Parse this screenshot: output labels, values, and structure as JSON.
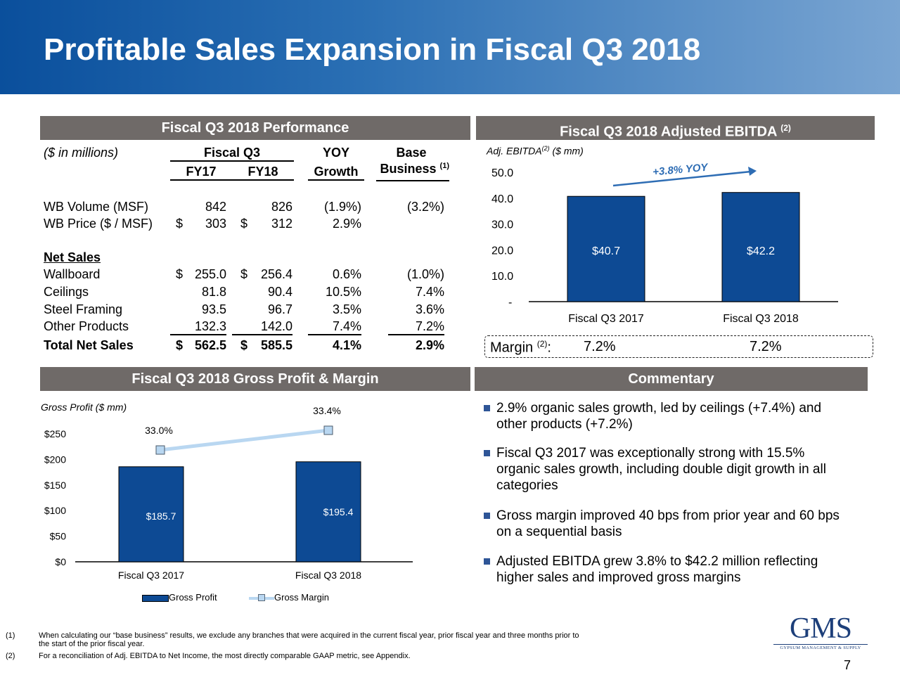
{
  "slide": {
    "title": "Profitable Sales Expansion in Fiscal Q3 2018",
    "page_number": "7"
  },
  "performance": {
    "header": "Fiscal Q3 2018 Performance",
    "units": "($ in millions)",
    "col_fiscal_q3": "Fiscal Q3",
    "col_yoy": "YOY",
    "col_base": "Base",
    "col_fy17": "FY17",
    "col_fy18": "FY18",
    "col_growth": "Growth",
    "col_business": "Business",
    "col_business_sup": "(1)",
    "net_sales_label": "Net Sales",
    "rows_volume": [
      {
        "label": "WB Volume (MSF)",
        "fy17_cur": "",
        "fy17": "842",
        "fy18_cur": "",
        "fy18": "826",
        "growth": "(1.9%)",
        "base": "(3.2%)"
      },
      {
        "label": "WB Price ($ / MSF)",
        "fy17_cur": "$",
        "fy17": "303",
        "fy18_cur": "$",
        "fy18": "312",
        "growth": "2.9%",
        "base": ""
      }
    ],
    "rows_sales": [
      {
        "label": "Wallboard",
        "fy17_cur": "$",
        "fy17": "255.0",
        "fy18_cur": "$",
        "fy18": "256.4",
        "growth": "0.6%",
        "base": "(1.0%)"
      },
      {
        "label": "Ceilings",
        "fy17_cur": "",
        "fy17": "81.8",
        "fy18_cur": "",
        "fy18": "90.4",
        "growth": "10.5%",
        "base": "7.4%"
      },
      {
        "label": "Steel Framing",
        "fy17_cur": "",
        "fy17": "93.5",
        "fy18_cur": "",
        "fy18": "96.7",
        "growth": "3.5%",
        "base": "3.6%"
      },
      {
        "label": "Other Products",
        "fy17_cur": "",
        "fy17": "132.3",
        "fy18_cur": "",
        "fy18": "142.0",
        "growth": "7.4%",
        "base": "7.2%"
      }
    ],
    "total": {
      "label": "Total Net Sales",
      "fy17_cur": "$",
      "fy17": "562.5",
      "fy18_cur": "$",
      "fy18": "585.5",
      "growth": "4.1%",
      "base": "2.9%"
    }
  },
  "ebitda": {
    "header": "Fiscal Q3 2018 Adjusted EBITDA",
    "header_sup": "(2)",
    "units_pre": "Adj. EBITDA",
    "units_sup": "(2)",
    "units_post": " ($ mm)",
    "yoy_label": "+3.8% YOY",
    "margin_label": "Margin",
    "margin_sup": "(2)",
    "margin_colon": ":",
    "margins": [
      "7.2%",
      "7.2%"
    ]
  },
  "gross": {
    "header": "Fiscal Q3 2018 Gross Profit & Margin",
    "units": "Gross Profit ($ mm)",
    "legend_bar": "Gross Profit",
    "legend_line": "Gross Margin"
  },
  "commentary": {
    "header": "Commentary",
    "bullets": [
      [
        "2.9% organic sales growth, led by ceilings (+7.4%) and",
        "other products (+7.2%)"
      ],
      [
        "Fiscal Q3 2017 was exceptionally strong with 15.5%",
        "organic sales growth, including double digit growth in all",
        "categories"
      ],
      [
        "Gross margin improved 40 bps from prior year and 60 bps",
        "on a sequential basis"
      ],
      [
        "Adjusted EBITDA grew 3.8% to $42.2 million reflecting",
        "higher sales and improved gross margins"
      ]
    ]
  },
  "footnotes": [
    {
      "num": "(1)",
      "lines": [
        "When calculating our “base business” results, we exclude any branches that were acquired in the current fiscal year, prior fiscal year and three months prior to",
        "the start of the prior fiscal year."
      ]
    },
    {
      "num": "(2)",
      "lines": [
        "For a reconciliation of Adj. EBITDA to Net Income, the most directly comparable GAAP metric, see Appendix."
      ]
    }
  ],
  "logo": {
    "text": "GMS",
    "tagline": "GYPSUM MANAGEMENT & SUPPLY"
  },
  "colors": {
    "bar": "#0d4a94",
    "line": "#b9d7f1",
    "header_bar": "#6f6a68",
    "arrow": "#2e6db4"
  },
  "chart_data": [
    {
      "type": "bar",
      "categories": [
        "Fiscal Q3 2017",
        "Fiscal Q3 2018"
      ],
      "values": [
        40.7,
        42.2
      ],
      "value_labels": [
        "$40.7",
        "$42.2"
      ],
      "ylim": [
        0,
        50
      ],
      "y_ticks": [
        "-",
        "10.0",
        "20.0",
        "30.0",
        "40.0",
        "50.0"
      ],
      "grid": false
    },
    {
      "type": "bar",
      "categories": [
        "Fiscal Q3 2017",
        "Fiscal Q3 2018"
      ],
      "series": [
        {
          "name": "Gross Profit",
          "type": "bar",
          "values": [
            185.7,
            195.4
          ],
          "value_labels": [
            "$185.7",
            "$195.4"
          ]
        },
        {
          "name": "Gross Margin",
          "type": "line",
          "values": [
            33.0,
            33.4
          ],
          "value_labels": [
            "33.0%",
            "33.4%"
          ]
        }
      ],
      "ylim": [
        0,
        250
      ],
      "y_ticks": [
        "$0",
        "$50",
        "$100",
        "$150",
        "$200",
        "$250"
      ],
      "legend": "bottom",
      "grid": false
    }
  ]
}
